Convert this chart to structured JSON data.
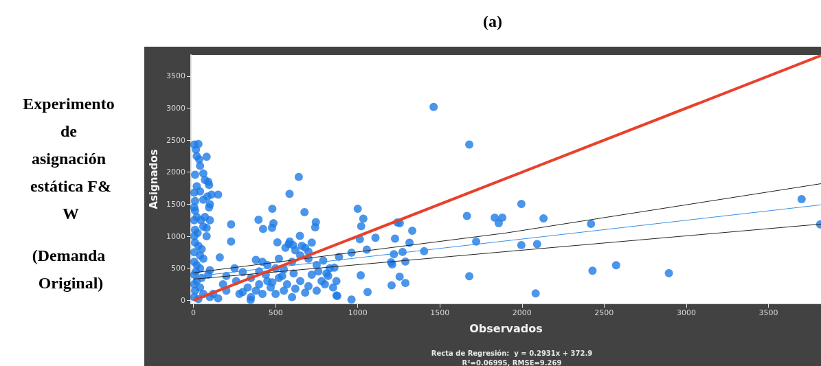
{
  "chart_data": {
    "type": "scatter",
    "title": "(a)",
    "xlabel": "Observados",
    "ylabel": "Asignados",
    "annotations": [
      "Experimento de asignación estática F&W",
      "(Demanda Original)",
      "Recta de Regresión:  y = 0.2931x + 372.9",
      "R²=0.06995, RMSE=9.269"
    ],
    "xlim": [
      -15,
      3820
    ],
    "ylim": [
      -50,
      3830
    ],
    "xticks": [
      0,
      500,
      1000,
      1500,
      2000,
      2500,
      3000,
      3500
    ],
    "yticks": [
      0,
      500,
      1000,
      1500,
      2000,
      2500,
      3000,
      3500
    ],
    "grid": false,
    "series": [
      {
        "marker": "circle",
        "color": "#1e7be6",
        "x": [
          5,
          30,
          15,
          20,
          35,
          40,
          10,
          60,
          80,
          70,
          90,
          95,
          20,
          40,
          5,
          110,
          150,
          10,
          60,
          85,
          100,
          95,
          5,
          10,
          20,
          70,
          5,
          45,
          100,
          60,
          80,
          10,
          25,
          5,
          80,
          10,
          30,
          50,
          5,
          40,
          60,
          5,
          20,
          40,
          15,
          5,
          50,
          20,
          5,
          40,
          10,
          60,
          5,
          30,
          100,
          100,
          90,
          120,
          160,
          229,
          229,
          150,
          200,
          180,
          250,
          300,
          280,
          200,
          396,
          424,
          480,
          487,
          478,
          511,
          585,
          641,
          676,
          745,
          741,
          648,
          586,
          606,
          348,
          871,
          350,
          380,
          400,
          420,
          450,
          470,
          500,
          520,
          550,
          570,
          600,
          620,
          650,
          680,
          700,
          720,
          750,
          780,
          800,
          820,
          850,
          870,
          400,
          450,
          500,
          550,
          600,
          620,
          650,
          680,
          700,
          720,
          750,
          580,
          560,
          660,
          700,
          610,
          520,
          420,
          380,
          440,
          350,
          330,
          300,
          260,
          480,
          540,
          760,
          790,
          830,
          810,
          1000,
          1034,
          1021,
          1013,
          1108,
          1055,
          962,
          886,
          858,
          1018,
          1060,
          962,
          875,
          1241,
          1256,
          1332,
          1227,
          1315,
          1273,
          1220,
          1404,
          1203,
          1210,
          1290,
          1255,
          1290,
          1206,
          1462,
          1679,
          1996,
          1665,
          1834,
          1858,
          1880,
          2131,
          2420,
          3702,
          3815,
          1721,
          1996,
          2092,
          2429,
          2573,
          2894,
          1679,
          2083
        ],
        "values": [
          2430,
          2440,
          2350,
          2250,
          2200,
          2100,
          1960,
          1980,
          2240,
          1880,
          1850,
          1800,
          1780,
          1700,
          1680,
          1650,
          1650,
          1550,
          1570,
          1620,
          1500,
          1450,
          1450,
          1400,
          1300,
          1300,
          1250,
          1250,
          1250,
          1150,
          1130,
          1100,
          1050,
          1000,
          1000,
          900,
          850,
          800,
          750,
          700,
          650,
          600,
          550,
          500,
          450,
          400,
          350,
          300,
          250,
          200,
          150,
          100,
          50,
          20,
          50,
          470,
          400,
          100,
          670,
          1185,
          917,
          30,
          150,
          250,
          500,
          440,
          100,
          380,
          1257,
          1114,
          1428,
          1203,
          1132,
          905,
          1661,
          1926,
          1375,
          1220,
          1140,
          1005,
          917,
          862,
          5,
          75,
          50,
          150,
          250,
          100,
          300,
          200,
          100,
          350,
          150,
          250,
          50,
          180,
          300,
          120,
          220,
          400,
          150,
          300,
          250,
          380,
          200,
          300,
          450,
          550,
          500,
          480,
          600,
          780,
          700,
          820,
          650,
          900,
          550,
          880,
          820,
          850,
          760,
          420,
          650,
          600,
          630,
          400,
          350,
          200,
          130,
          300,
          280,
          380,
          450,
          620,
          500,
          420,
          1428,
          1275,
          1157,
          953,
          977,
          791,
          744,
          680,
          509,
          390,
          129,
          11,
          68,
          1214,
          1203,
          1085,
          963,
          898,
          755,
          720,
          766,
          594,
          560,
          605,
          369,
          270,
          233,
          3018,
          2431,
          1504,
          1316,
          1291,
          1203,
          1291,
          1278,
          1192,
          1579,
          1185,
          916,
          862,
          877,
          462,
          548,
          423,
          376,
          107
        ]
      },
      {
        "type": "line",
        "marker": "none",
        "color": "#222222",
        "x": [
          0,
          1900,
          3820
        ],
        "values": [
          430,
          1050,
          1820
        ]
      },
      {
        "type": "line",
        "marker": "none",
        "color": "#222222",
        "x": [
          0,
          1900,
          3820
        ],
        "values": [
          330,
          760,
          1190
        ]
      },
      {
        "type": "line",
        "marker": "none",
        "color": "#3a8ee8",
        "x": [
          0,
          3820
        ],
        "values": [
          370,
          1490
        ]
      },
      {
        "type": "line",
        "marker": "none",
        "color": "#e8412c",
        "x": [
          0,
          3820
        ],
        "values": [
          0,
          3820
        ]
      }
    ]
  }
}
